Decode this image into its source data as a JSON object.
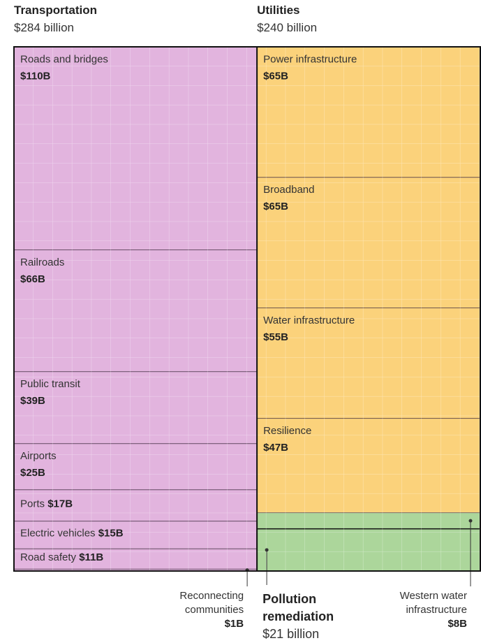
{
  "chart_data": {
    "type": "waffle",
    "groups": [
      {
        "name": "Transportation",
        "total": 284,
        "total_label": "$284 billion",
        "color": "#e2b4de",
        "items": [
          {
            "label": "Roads and bridges",
            "value": 110,
            "value_label": "$110B"
          },
          {
            "label": "Railroads",
            "value": 66,
            "value_label": "$66B"
          },
          {
            "label": "Public transit",
            "value": 39,
            "value_label": "$39B"
          },
          {
            "label": "Airports",
            "value": 25,
            "value_label": "$25B"
          },
          {
            "label": "Ports",
            "value": 17,
            "value_label": "$17B"
          },
          {
            "label": "Electric vehicles",
            "value": 15,
            "value_label": "$15B"
          },
          {
            "label": "Road safety",
            "value": 11,
            "value_label": "$11B"
          },
          {
            "label": "Reconnecting communities",
            "value": 1,
            "value_label": "$1B"
          }
        ]
      },
      {
        "name": "Utilities",
        "total": 240,
        "total_label": "$240 billion",
        "color": "#fbd27b",
        "items": [
          {
            "label": "Power infrastructure",
            "value": 65,
            "value_label": "$65B"
          },
          {
            "label": "Broadband",
            "value": 65,
            "value_label": "$65B"
          },
          {
            "label": "Water infrastructure",
            "value": 55,
            "value_label": "$55B"
          },
          {
            "label": "Resilience",
            "value": 47,
            "value_label": "$47B"
          },
          {
            "label": "Western water infrastructure",
            "value": 8,
            "value_label": "$8B",
            "color": "#acd69b"
          }
        ]
      },
      {
        "name": "Pollution remediation",
        "total": 21,
        "total_label": "$21 billion",
        "color": "#acd69b",
        "items": []
      }
    ]
  }
}
